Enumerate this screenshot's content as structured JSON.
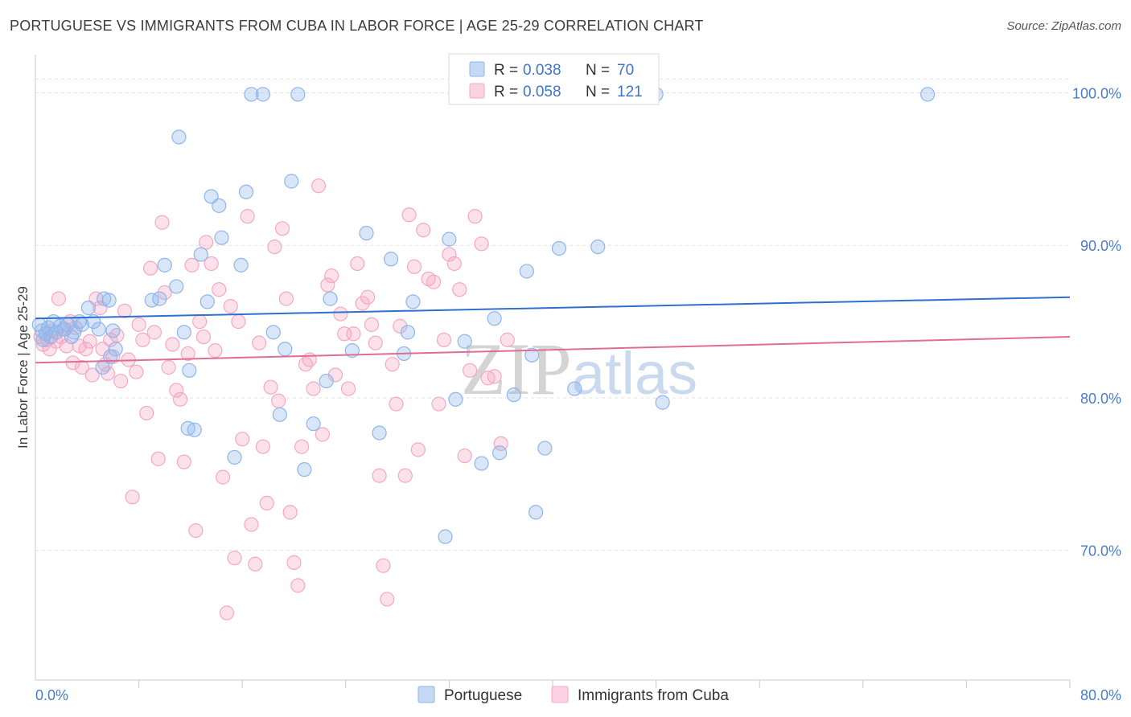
{
  "header": {
    "title": "PORTUGUESE VS IMMIGRANTS FROM CUBA IN LABOR FORCE | AGE 25-29 CORRELATION CHART",
    "source": "Source: ZipAtlas.com"
  },
  "watermark": "ZIPatlas",
  "chart_data": {
    "type": "scatter",
    "title": "PORTUGUESE VS IMMIGRANTS FROM CUBA IN LABOR FORCE | AGE 25-29 CORRELATION CHART",
    "ylabel": "In Labor Force | Age 25-29",
    "xlabel": "",
    "xlim": [
      0,
      80
    ],
    "ylim": [
      61.5,
      102.5
    ],
    "x_tick_labels": [
      "0.0%",
      "80.0%"
    ],
    "y_ticks": [
      70,
      80,
      90,
      100
    ],
    "y_tick_labels": [
      "70.0%",
      "80.0%",
      "90.0%",
      "100.0%"
    ],
    "grid": true,
    "legend_position": "top-center",
    "series": [
      {
        "name": "Portuguese",
        "color": "#8fb6ea",
        "line_color": "#2f6fd0",
        "R": "0.038",
        "N": "70",
        "trend": [
          [
            0,
            85.2
          ],
          [
            80,
            86.6
          ]
        ],
        "points": [
          [
            0.3,
            84.8
          ],
          [
            0.5,
            84.4
          ],
          [
            0.6,
            83.8
          ],
          [
            0.8,
            84.2
          ],
          [
            1.0,
            84.6
          ],
          [
            1.2,
            84.0
          ],
          [
            1.4,
            85.0
          ],
          [
            1.6,
            84.3
          ],
          [
            1.9,
            84.7
          ],
          [
            2.2,
            84.5
          ],
          [
            2.5,
            84.8
          ],
          [
            2.8,
            84.0
          ],
          [
            3.0,
            84.3
          ],
          [
            3.4,
            85.0
          ],
          [
            3.6,
            84.8
          ],
          [
            4.1,
            85.9
          ],
          [
            4.5,
            85.0
          ],
          [
            4.9,
            84.5
          ],
          [
            5.3,
            86.5
          ],
          [
            5.7,
            86.4
          ],
          [
            5.2,
            82.0
          ],
          [
            5.8,
            82.7
          ],
          [
            6.0,
            84.4
          ],
          [
            6.2,
            83.2
          ],
          [
            9.0,
            86.4
          ],
          [
            9.6,
            86.5
          ],
          [
            10.0,
            88.7
          ],
          [
            10.9,
            87.3
          ],
          [
            11.1,
            97.1
          ],
          [
            11.5,
            84.3
          ],
          [
            11.8,
            78.0
          ],
          [
            11.9,
            81.8
          ],
          [
            12.3,
            77.9
          ],
          [
            12.8,
            89.4
          ],
          [
            13.3,
            86.3
          ],
          [
            13.6,
            93.2
          ],
          [
            14.2,
            92.6
          ],
          [
            14.4,
            90.5
          ],
          [
            15.4,
            76.1
          ],
          [
            15.9,
            88.7
          ],
          [
            16.3,
            93.5
          ],
          [
            16.7,
            99.9
          ],
          [
            17.6,
            99.9
          ],
          [
            18.4,
            84.3
          ],
          [
            18.9,
            78.9
          ],
          [
            19.3,
            83.2
          ],
          [
            19.8,
            94.2
          ],
          [
            20.3,
            99.9
          ],
          [
            20.8,
            75.3
          ],
          [
            21.5,
            78.3
          ],
          [
            22.5,
            81.1
          ],
          [
            22.8,
            86.5
          ],
          [
            24.5,
            83.1
          ],
          [
            25.6,
            90.8
          ],
          [
            26.6,
            77.7
          ],
          [
            27.5,
            89.1
          ],
          [
            28.5,
            82.9
          ],
          [
            28.8,
            84.3
          ],
          [
            29.2,
            86.3
          ],
          [
            31.7,
            70.9
          ],
          [
            32.0,
            90.4
          ],
          [
            32.5,
            79.9
          ],
          [
            33.2,
            83.7
          ],
          [
            34.5,
            75.7
          ],
          [
            35.5,
            85.2
          ],
          [
            35.9,
            76.4
          ],
          [
            36.0,
            99.9
          ],
          [
            37.0,
            80.2
          ],
          [
            38.0,
            88.3
          ],
          [
            38.4,
            82.8
          ],
          [
            38.7,
            72.5
          ],
          [
            39.4,
            76.7
          ],
          [
            40.5,
            89.8
          ],
          [
            41.7,
            80.6
          ],
          [
            43.5,
            89.9
          ],
          [
            48.0,
            99.9
          ],
          [
            48.5,
            79.7
          ],
          [
            69.0,
            99.9
          ]
        ]
      },
      {
        "name": "Immigrants from Cuba",
        "color": "#f5a8c4",
        "line_color": "#de6d98",
        "R": "0.058",
        "N": "121",
        "trend": [
          [
            0,
            82.3
          ],
          [
            80,
            84.0
          ]
        ],
        "points": [
          [
            0.4,
            84.0
          ],
          [
            0.6,
            83.5
          ],
          [
            0.9,
            83.8
          ],
          [
            1.1,
            83.2
          ],
          [
            1.3,
            84.4
          ],
          [
            1.6,
            83.7
          ],
          [
            1.8,
            86.5
          ],
          [
            2.0,
            84.0
          ],
          [
            2.3,
            84.5
          ],
          [
            2.4,
            83.4
          ],
          [
            2.7,
            85.0
          ],
          [
            2.9,
            82.3
          ],
          [
            3.1,
            84.6
          ],
          [
            3.4,
            83.4
          ],
          [
            3.6,
            82.0
          ],
          [
            3.9,
            83.2
          ],
          [
            4.2,
            83.7
          ],
          [
            4.4,
            81.5
          ],
          [
            4.7,
            86.5
          ],
          [
            5.0,
            85.9
          ],
          [
            5.2,
            83.2
          ],
          [
            5.4,
            82.2
          ],
          [
            5.6,
            81.6
          ],
          [
            5.8,
            83.8
          ],
          [
            6.0,
            82.7
          ],
          [
            6.3,
            84.1
          ],
          [
            6.6,
            81.1
          ],
          [
            6.9,
            85.7
          ],
          [
            7.2,
            82.5
          ],
          [
            7.5,
            73.5
          ],
          [
            7.8,
            81.7
          ],
          [
            8.0,
            84.8
          ],
          [
            8.3,
            83.8
          ],
          [
            8.6,
            79.0
          ],
          [
            8.9,
            88.5
          ],
          [
            9.2,
            84.3
          ],
          [
            9.5,
            76.0
          ],
          [
            9.8,
            91.5
          ],
          [
            10.0,
            86.9
          ],
          [
            10.3,
            82.0
          ],
          [
            10.6,
            83.5
          ],
          [
            10.9,
            80.5
          ],
          [
            11.2,
            79.9
          ],
          [
            11.5,
            75.8
          ],
          [
            11.8,
            82.9
          ],
          [
            12.1,
            88.7
          ],
          [
            12.4,
            71.3
          ],
          [
            12.7,
            85.0
          ],
          [
            13.0,
            84.0
          ],
          [
            13.2,
            90.2
          ],
          [
            13.6,
            88.8
          ],
          [
            13.9,
            83.1
          ],
          [
            14.2,
            87.1
          ],
          [
            14.5,
            74.8
          ],
          [
            14.8,
            65.9
          ],
          [
            15.1,
            86.0
          ],
          [
            15.4,
            69.5
          ],
          [
            15.7,
            85.0
          ],
          [
            16.0,
            77.3
          ],
          [
            16.4,
            91.9
          ],
          [
            16.7,
            71.7
          ],
          [
            17.0,
            69.1
          ],
          [
            17.3,
            83.6
          ],
          [
            17.6,
            76.8
          ],
          [
            17.9,
            73.1
          ],
          [
            18.2,
            80.7
          ],
          [
            18.5,
            89.9
          ],
          [
            18.8,
            79.8
          ],
          [
            19.1,
            91.1
          ],
          [
            19.4,
            86.5
          ],
          [
            19.7,
            72.5
          ],
          [
            20.0,
            69.2
          ],
          [
            20.3,
            67.7
          ],
          [
            20.6,
            76.8
          ],
          [
            20.9,
            82.2
          ],
          [
            21.2,
            82.5
          ],
          [
            21.5,
            80.6
          ],
          [
            21.9,
            93.9
          ],
          [
            22.2,
            77.6
          ],
          [
            22.6,
            87.4
          ],
          [
            22.9,
            88.0
          ],
          [
            23.2,
            81.5
          ],
          [
            23.6,
            85.5
          ],
          [
            23.9,
            84.2
          ],
          [
            24.2,
            80.6
          ],
          [
            24.6,
            84.2
          ],
          [
            24.9,
            88.8
          ],
          [
            25.3,
            86.2
          ],
          [
            25.7,
            86.6
          ],
          [
            26.0,
            84.8
          ],
          [
            26.3,
            83.6
          ],
          [
            26.6,
            74.9
          ],
          [
            26.9,
            69.0
          ],
          [
            27.2,
            66.8
          ],
          [
            27.6,
            82.2
          ],
          [
            27.9,
            79.6
          ],
          [
            28.2,
            84.7
          ],
          [
            28.6,
            74.9
          ],
          [
            28.9,
            92.0
          ],
          [
            29.3,
            88.6
          ],
          [
            29.6,
            76.6
          ],
          [
            30.0,
            91.0
          ],
          [
            30.4,
            87.8
          ],
          [
            30.8,
            87.6
          ],
          [
            31.2,
            79.6
          ],
          [
            31.6,
            83.8
          ],
          [
            32.0,
            89.4
          ],
          [
            32.4,
            88.8
          ],
          [
            32.8,
            87.1
          ],
          [
            33.2,
            76.2
          ],
          [
            33.6,
            81.8
          ],
          [
            34.0,
            91.9
          ],
          [
            34.5,
            90.1
          ],
          [
            35.0,
            81.3
          ],
          [
            35.5,
            81.4
          ],
          [
            36.0,
            77.0
          ],
          [
            36.5,
            83.8
          ]
        ]
      }
    ]
  },
  "bottom_legend": [
    {
      "label": "Portuguese"
    },
    {
      "label": "Immigrants from Cuba"
    }
  ]
}
